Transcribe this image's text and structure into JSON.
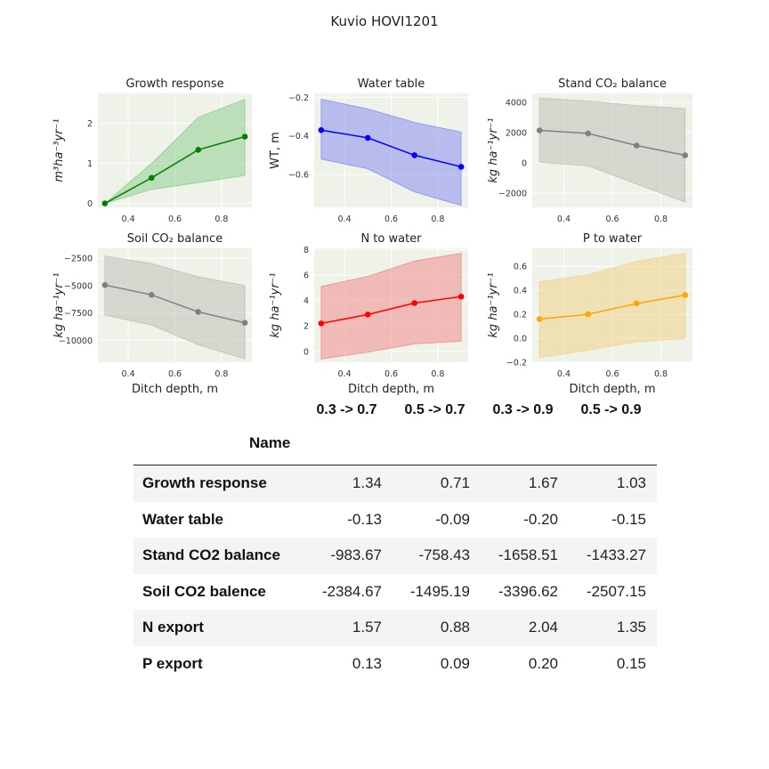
{
  "figure_title": "Kuvio HOVI1201",
  "chart_data": [
    {
      "type": "line",
      "title": "Growth response",
      "ylabel": "m³ha⁻³yr⁻¹",
      "xlabel": "",
      "x": [
        0.3,
        0.5,
        0.7,
        0.9
      ],
      "y": [
        0.0,
        0.64,
        1.34,
        1.67
      ],
      "band_low": [
        0.0,
        0.35,
        0.52,
        0.7
      ],
      "band_high": [
        0.0,
        1.0,
        2.15,
        2.6
      ],
      "xlim": [
        0.27,
        0.93
      ],
      "ylim": [
        -0.1,
        2.75
      ],
      "xticks": [
        0.4,
        0.6,
        0.8
      ],
      "yticks": [
        0,
        1,
        2
      ],
      "ytick_labels": [
        "0",
        "1",
        "2"
      ],
      "line_color": "#008000",
      "band_color": "#90d090"
    },
    {
      "type": "line",
      "title": "Water table",
      "ylabel": "WT, m",
      "xlabel": "",
      "x": [
        0.3,
        0.5,
        0.7,
        0.9
      ],
      "y": [
        -0.37,
        -0.41,
        -0.5,
        -0.56
      ],
      "band_low": [
        -0.52,
        -0.57,
        -0.69,
        -0.76
      ],
      "band_high": [
        -0.21,
        -0.26,
        -0.33,
        -0.38
      ],
      "xlim": [
        0.27,
        0.93
      ],
      "ylim": [
        -0.77,
        -0.18
      ],
      "xticks": [
        0.4,
        0.6,
        0.8
      ],
      "yticks": [
        -0.2,
        -0.4,
        -0.6
      ],
      "ytick_labels": [
        "−0.2",
        "−0.4",
        "−0.6"
      ],
      "line_color": "#0000ff",
      "band_color": "#8a8ff0"
    },
    {
      "type": "line",
      "title": "Stand CO₂ balance",
      "ylabel": "kg ha⁻¹yr⁻¹",
      "xlabel": "",
      "x": [
        0.3,
        0.5,
        0.7,
        0.9
      ],
      "y": [
        2150,
        1950,
        1150,
        500
      ],
      "band_low": [
        50,
        -200,
        -1400,
        -2600
      ],
      "band_high": [
        4300,
        4100,
        3800,
        3600
      ],
      "xlim": [
        0.27,
        0.93
      ],
      "ylim": [
        -2950,
        4600
      ],
      "xticks": [
        0.4,
        0.6,
        0.8
      ],
      "yticks": [
        4000,
        2000,
        0,
        -2000
      ],
      "ytick_labels": [
        "4000",
        "2000",
        "0",
        "−2000"
      ],
      "line_color": "#808080",
      "band_color": "#c0c0b8"
    },
    {
      "type": "line",
      "title": "Soil CO₂ balance",
      "ylabel": "kg ha⁻¹yr⁻¹",
      "xlabel": "Ditch depth, m",
      "x": [
        0.3,
        0.5,
        0.7,
        0.9
      ],
      "y": [
        -4950,
        -5850,
        -7400,
        -8400
      ],
      "band_low": [
        -7700,
        -8600,
        -10400,
        -11700
      ],
      "band_high": [
        -2300,
        -3000,
        -4200,
        -5000
      ],
      "xlim": [
        0.27,
        0.93
      ],
      "ylim": [
        -12000,
        -1600
      ],
      "xticks": [
        0.4,
        0.6,
        0.8
      ],
      "yticks": [
        -2500,
        -5000,
        -7500,
        -10000
      ],
      "ytick_labels": [
        "−2500",
        "−5000",
        "−7500",
        "−10000"
      ],
      "line_color": "#808080",
      "band_color": "#c0c0b8"
    },
    {
      "type": "line",
      "title": "N to water",
      "ylabel": "kg ha⁻¹yr⁻¹",
      "xlabel": "Ditch depth, m",
      "x": [
        0.3,
        0.5,
        0.7,
        0.9
      ],
      "y": [
        2.2,
        2.9,
        3.8,
        4.3
      ],
      "band_low": [
        -0.6,
        -0.05,
        0.6,
        0.8
      ],
      "band_high": [
        5.1,
        5.9,
        7.1,
        7.7
      ],
      "xlim": [
        0.27,
        0.93
      ],
      "ylim": [
        -0.85,
        8.1
      ],
      "xticks": [
        0.4,
        0.6,
        0.8
      ],
      "yticks": [
        0,
        2,
        4,
        6,
        8
      ],
      "ytick_labels": [
        "0",
        "2",
        "4",
        "6",
        "8"
      ],
      "line_color": "#ff0000",
      "band_color": "#f08c8c"
    },
    {
      "type": "line",
      "title": "P to water",
      "ylabel": "kg ha⁻¹yr⁻¹",
      "xlabel": "Ditch depth, m",
      "x": [
        0.3,
        0.5,
        0.7,
        0.9
      ],
      "y": [
        0.16,
        0.2,
        0.29,
        0.36
      ],
      "band_low": [
        -0.16,
        -0.1,
        -0.03,
        0.0
      ],
      "band_high": [
        0.47,
        0.53,
        0.64,
        0.71
      ],
      "xlim": [
        0.27,
        0.93
      ],
      "ylim": [
        -0.2,
        0.75
      ],
      "xticks": [
        0.4,
        0.6,
        0.8
      ],
      "yticks": [
        0.6,
        0.4,
        0.2,
        0.0,
        -0.2
      ],
      "ytick_labels": [
        "0.6",
        "0.4",
        "0.2",
        "0.0",
        "−0.2"
      ],
      "line_color": "#ffa500",
      "band_color": "#f0d48a"
    }
  ],
  "table": {
    "columns": [
      "0.3 -> 0.7",
      "0.5 -> 0.7",
      "0.3 -> 0.9",
      "0.5 -> 0.9"
    ],
    "index_name": "Name",
    "rows": [
      {
        "name": "Growth response",
        "values": [
          "1.34",
          "0.71",
          "1.67",
          "1.03"
        ]
      },
      {
        "name": "Water table",
        "values": [
          "-0.13",
          "-0.09",
          "-0.20",
          "-0.15"
        ]
      },
      {
        "name": "Stand CO2 balance",
        "values": [
          "-983.67",
          "-758.43",
          "-1658.51",
          "-1433.27"
        ]
      },
      {
        "name": "Soil CO2 balence",
        "values": [
          "-2384.67",
          "-1495.19",
          "-3396.62",
          "-2507.15"
        ]
      },
      {
        "name": "N export",
        "values": [
          "1.57",
          "0.88",
          "2.04",
          "1.35"
        ]
      },
      {
        "name": "P export",
        "values": [
          "0.13",
          "0.09",
          "0.20",
          "0.15"
        ]
      }
    ]
  }
}
